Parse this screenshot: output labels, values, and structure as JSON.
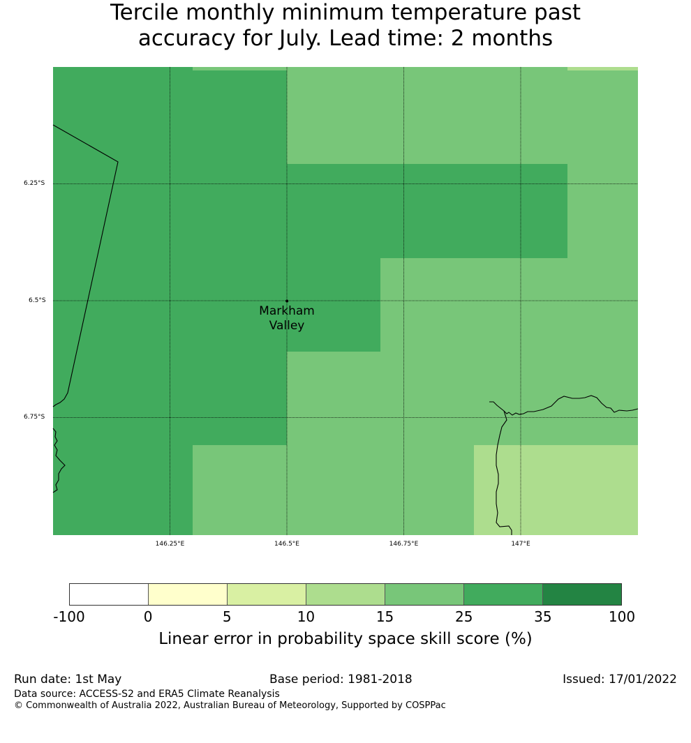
{
  "title": {
    "line1": "Tercile monthly minimum temperature past",
    "line2": "accuracy for July. Lead time: 2 months"
  },
  "map": {
    "lat_labels": [
      "6.25°S",
      "6.5°S",
      "6.75°S"
    ],
    "lon_labels": [
      "146.25°E",
      "146.5°E",
      "146.75°E",
      "147°E"
    ],
    "place": {
      "name_line1": "Markham",
      "name_line2": "Valley",
      "lon": 146.5,
      "lat": -6.5
    },
    "extent": {
      "lon_min": 146.0,
      "lon_max": 147.25,
      "lat_min": -7.0,
      "lat_max": -6.0
    }
  },
  "colorbar": {
    "ticks": [
      "-100",
      "0",
      "5",
      "10",
      "15",
      "25",
      "35",
      "100"
    ],
    "colors": [
      "#ffffff",
      "#ffffcc",
      "#d9f0a3",
      "#addd8e",
      "#78c679",
      "#41ab5d",
      "#238443"
    ],
    "label": "Linear error in probability space skill score (%)"
  },
  "footer": {
    "run_date": "Run date: 1st May",
    "base_period": "Base period: 1981-2018",
    "issued": "Issued: 17/01/2022",
    "data_source": "Data source: ACCESS-S2 and ERA5 Climate Reanalysis",
    "copyright": "© Commonwealth of Australia 2022, Australian Bureau of Meteorology, Supported by COSPPac"
  }
}
